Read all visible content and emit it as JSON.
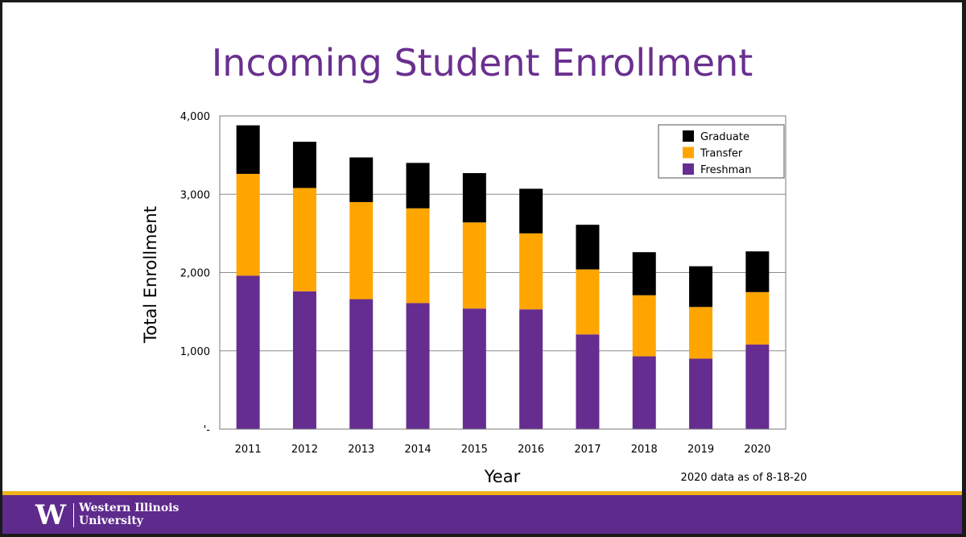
{
  "slide": {
    "title": "Incoming Student Enrollment",
    "note": "2020 data as of 8-18-20"
  },
  "footer": {
    "logo_mark": "W",
    "institution_line1": "Western Illinois",
    "institution_line2": "University"
  },
  "colors": {
    "title": "#6a2f8f",
    "freshman": "#662d91",
    "transfer": "#ffa500",
    "graduate": "#000000",
    "footer": "#5e2a8c",
    "accent": "#f2b21a"
  },
  "chart_data": {
    "type": "bar",
    "stacked": true,
    "title": "Incoming Student Enrollment",
    "xlabel": "Year",
    "ylabel": "Total Enrollment",
    "ylim": [
      0,
      4000
    ],
    "yticks": [
      0,
      1000,
      2000,
      3000,
      4000
    ],
    "ytick_labels": [
      "'-",
      "1,000",
      "2,000",
      "3,000",
      "4,000"
    ],
    "grid": true,
    "legend_position": "top-right",
    "categories": [
      "2011",
      "2012",
      "2013",
      "2014",
      "2015",
      "2016",
      "2017",
      "2018",
      "2019",
      "2020"
    ],
    "series": [
      {
        "name": "Freshman",
        "color": "#662d91",
        "values": [
          1960,
          1760,
          1660,
          1610,
          1540,
          1530,
          1210,
          930,
          900,
          1080
        ]
      },
      {
        "name": "Transfer",
        "color": "#ffa500",
        "values": [
          1300,
          1320,
          1240,
          1210,
          1100,
          970,
          830,
          780,
          660,
          670
        ]
      },
      {
        "name": "Graduate",
        "color": "#000000",
        "values": [
          620,
          590,
          570,
          580,
          630,
          570,
          570,
          550,
          520,
          520
        ]
      }
    ],
    "legend_order": [
      "Graduate",
      "Transfer",
      "Freshman"
    ]
  }
}
